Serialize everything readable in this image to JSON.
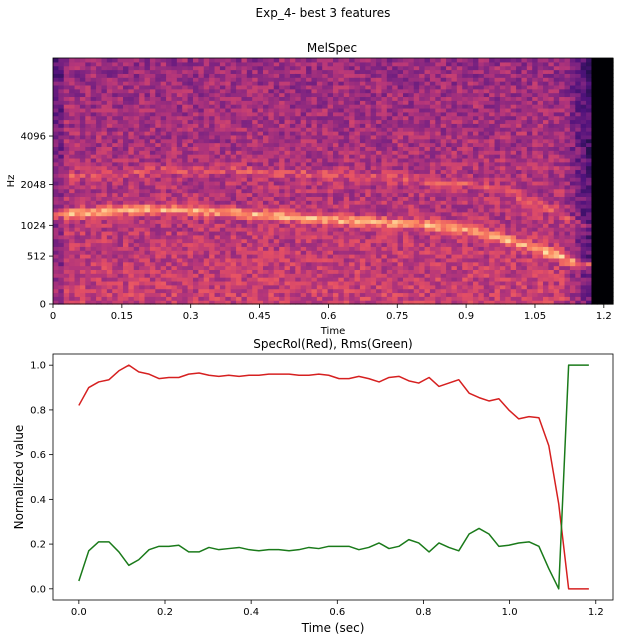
{
  "figure_title": "Exp_4- best 3 features",
  "chart_data": [
    {
      "type": "heatmap",
      "title": "MelSpec",
      "xlabel": "Time",
      "ylabel": "Hz",
      "xlim": [
        0,
        1.22
      ],
      "x_ticks": [
        "0",
        "0.15",
        "0.3",
        "0.45",
        "0.6",
        "0.75",
        "0.9",
        "1.05",
        "1.2"
      ],
      "y_scale": "mel",
      "y_ticks": [
        "0",
        "512",
        "1024",
        "2048",
        "4096"
      ],
      "colormap": "magma",
      "signal_end_time": 1.16,
      "ridges_hz": [
        {
          "x": [
            0.0,
            0.2,
            0.4,
            0.6,
            0.8,
            0.9,
            1.0,
            1.1,
            1.15
          ],
          "y": [
            1250,
            1400,
            1300,
            1150,
            1050,
            950,
            750,
            520,
            400
          ]
        },
        {
          "x": [
            0.0,
            0.3,
            0.6,
            0.9,
            1.05,
            1.15
          ],
          "y": [
            2300,
            2600,
            2400,
            2100,
            1600,
            1000
          ]
        }
      ]
    },
    {
      "type": "line",
      "title": "SpecRol(Red), Rms(Green)",
      "xlabel": "Time (sec)",
      "ylabel": "Normalized value",
      "xlim": [
        -0.06,
        1.24
      ],
      "ylim": [
        -0.05,
        1.05
      ],
      "x_ticks": [
        "0.0",
        "0.2",
        "0.4",
        "0.6",
        "0.8",
        "1.0",
        "1.2"
      ],
      "y_ticks": [
        "0.0",
        "0.2",
        "0.4",
        "0.6",
        "0.8",
        "1.0"
      ],
      "x": [
        0.0,
        0.023,
        0.046,
        0.07,
        0.093,
        0.116,
        0.139,
        0.163,
        0.186,
        0.209,
        0.232,
        0.255,
        0.279,
        0.302,
        0.325,
        0.348,
        0.372,
        0.395,
        0.418,
        0.441,
        0.464,
        0.488,
        0.511,
        0.534,
        0.557,
        0.58,
        0.604,
        0.627,
        0.65,
        0.673,
        0.697,
        0.72,
        0.743,
        0.766,
        0.789,
        0.813,
        0.836,
        0.859,
        0.882,
        0.906,
        0.929,
        0.952,
        0.975,
        0.998,
        1.021,
        1.045,
        1.068,
        1.091,
        1.114,
        1.137,
        1.161,
        1.184
      ],
      "series": [
        {
          "color": "#d62020",
          "values": [
            0.82,
            0.9,
            0.925,
            0.935,
            0.975,
            1.0,
            0.97,
            0.96,
            0.94,
            0.945,
            0.945,
            0.96,
            0.965,
            0.955,
            0.95,
            0.955,
            0.95,
            0.955,
            0.955,
            0.96,
            0.96,
            0.96,
            0.955,
            0.955,
            0.96,
            0.955,
            0.94,
            0.94,
            0.95,
            0.94,
            0.925,
            0.945,
            0.95,
            0.93,
            0.92,
            0.945,
            0.905,
            0.92,
            0.935,
            0.875,
            0.855,
            0.84,
            0.85,
            0.8,
            0.76,
            0.77,
            0.765,
            0.64,
            0.38,
            0.0,
            0.0,
            0.0
          ]
        },
        {
          "color": "#1a7a1a",
          "values": [
            0.035,
            0.17,
            0.21,
            0.21,
            0.165,
            0.105,
            0.13,
            0.175,
            0.19,
            0.19,
            0.195,
            0.165,
            0.165,
            0.185,
            0.175,
            0.18,
            0.185,
            0.175,
            0.17,
            0.175,
            0.175,
            0.17,
            0.175,
            0.185,
            0.18,
            0.19,
            0.19,
            0.19,
            0.175,
            0.185,
            0.205,
            0.18,
            0.19,
            0.22,
            0.205,
            0.165,
            0.205,
            0.185,
            0.17,
            0.245,
            0.27,
            0.245,
            0.19,
            0.195,
            0.205,
            0.21,
            0.19,
            0.09,
            0.0,
            1.0,
            1.0,
            1.0
          ]
        }
      ]
    }
  ]
}
